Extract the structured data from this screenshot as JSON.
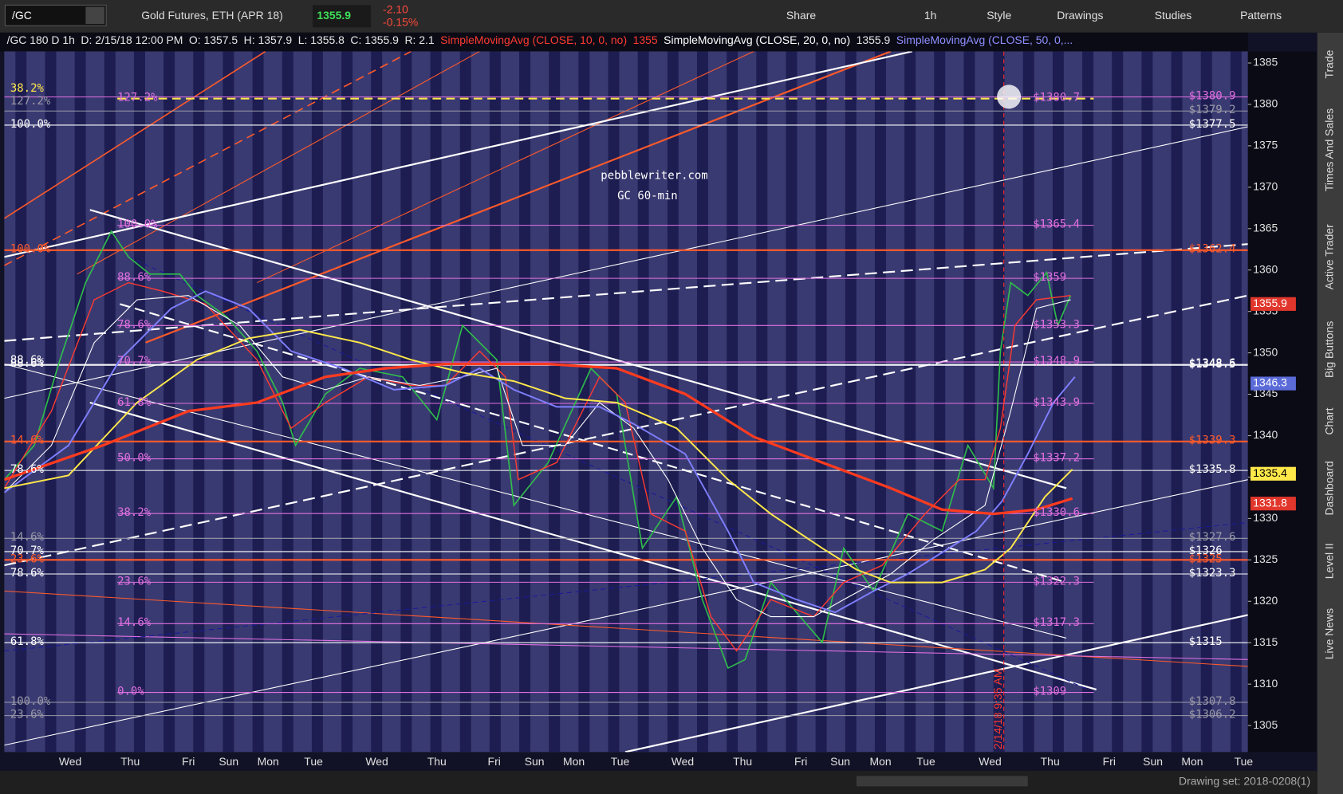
{
  "toolbar": {
    "symbol": "/GC",
    "description": "Gold Futures, ETH (APR 18)",
    "last": "1355.9",
    "change": "-2.10",
    "change_pct": "-0.15%",
    "buttons": [
      "Share",
      "1h",
      "Style",
      "Drawings",
      "Studies",
      "Patterns"
    ]
  },
  "info_line": {
    "chart": "/GC 180 D 1h",
    "date": "D: 2/15/18 12:00 PM",
    "open": "O: 1357.5",
    "high": "H: 1357.9",
    "low": "L: 1355.8",
    "close": "C: 1355.9",
    "range": "R: 2.1",
    "studies": [
      {
        "name": "SimpleMovingAvg (CLOSE, 10, 0, no)",
        "value": "1355",
        "color": "#ff3b30"
      },
      {
        "name": "SimpleMovingAvg (CLOSE, 20, 0, no)",
        "value": "1355.9",
        "color": "#ffffff"
      },
      {
        "name": "SimpleMovingAvg (CLOSE, 50, 0,...",
        "color": "#8f8fff"
      }
    ]
  },
  "watermark": [
    "pebblewriter.com",
    "GC 60-min"
  ],
  "annotation": "2/14/18 9:35 AM",
  "price_axis": {
    "ylim": [
      1301.8,
      1386.4
    ],
    "ticks": [
      1385,
      1380,
      1375,
      1370,
      1365,
      1360,
      1355,
      1350,
      1345,
      1340,
      1335,
      1330,
      1325,
      1320,
      1315,
      1310,
      1305
    ]
  },
  "days": [
    "Wed",
    "Thu",
    "Fri",
    "Sun",
    "Mon",
    "Tue",
    "Wed",
    "Thu",
    "Fri",
    "Sun",
    "Mon",
    "Tue",
    "Wed",
    "Thu",
    "Fri",
    "Sun",
    "Mon",
    "Tue",
    "Wed",
    "Thu",
    "Fri",
    "Sun",
    "Mon",
    "Tue"
  ],
  "fib_levels": [
    {
      "pct": "127.2%",
      "label": "$1380.7",
      "value": 1380.7
    },
    {
      "pct": "100.0%",
      "label": "$1365.4",
      "value": 1365.4
    },
    {
      "pct": "88.6%",
      "label": "$1359",
      "value": 1359
    },
    {
      "pct": "78.6%",
      "label": "$1353.3",
      "value": 1353.3
    },
    {
      "pct": "70.7%",
      "label": "$1348.9",
      "value": 1348.9
    },
    {
      "pct": "61.8%",
      "label": "$1343.9",
      "value": 1343.9
    },
    {
      "pct": "50.0%",
      "label": "$1337.2",
      "value": 1337.2
    },
    {
      "pct": "38.2%",
      "label": "$1330.6",
      "value": 1330.6
    },
    {
      "pct": "23.6%",
      "label": "$1322.3",
      "value": 1322.3
    },
    {
      "pct": "14.6%",
      "label": "$1317.3",
      "value": 1317.3
    },
    {
      "pct": "0.0%",
      "label": "$1309",
      "value": 1309
    }
  ],
  "levels": [
    {
      "label": "$1380.9",
      "value": 1380.9,
      "color": "#e070e0"
    },
    {
      "label": "$1379.2",
      "value": 1379.2,
      "color": "#9a9aa8"
    },
    {
      "label": "$1377.5",
      "value": 1377.5,
      "color": "#ffffff"
    },
    {
      "label": "$1362.4",
      "value": 1362.4,
      "color": "#ff5a2a"
    },
    {
      "label": "$1348.6",
      "value": 1348.6,
      "color": "#ffffff"
    },
    {
      "label": "$1348.5",
      "value": 1348.5,
      "color": "#ffffff"
    },
    {
      "label": "$1339.3",
      "value": 1339.3,
      "color": "#ff5a2a"
    },
    {
      "label": "$1335.8",
      "value": 1335.8,
      "color": "#ffffff"
    },
    {
      "label": "$1327.6",
      "value": 1327.6,
      "color": "#9a9aa8"
    },
    {
      "label": "$1326",
      "value": 1326,
      "color": "#ffffff"
    },
    {
      "label": "$1325",
      "value": 1325,
      "color": "#ff5a2a"
    },
    {
      "label": "$1323.3",
      "value": 1323.3,
      "color": "#ffffff"
    },
    {
      "label": "$1315",
      "value": 1315,
      "color": "#ffffff"
    },
    {
      "label": "$1307.8",
      "value": 1307.8,
      "color": "#9a9aa8"
    },
    {
      "label": "$1306.2",
      "value": 1306.2,
      "color": "#9a9aa8"
    }
  ],
  "left_labels": [
    {
      "pct": "38.2%",
      "value": 1381.8,
      "color": "#ffe84a"
    },
    {
      "pct": "127.2%",
      "value": 1380.3,
      "color": "#9a9aa8"
    },
    {
      "pct": "100.0%",
      "value": 1377.5,
      "color": "#ffffff"
    },
    {
      "pct": "100.0%",
      "value": 1362.4,
      "color": "#ff5a2a"
    },
    {
      "pct": "88.6%",
      "value": 1349,
      "color": "#ffffff"
    },
    {
      "pct": "88.6%",
      "value": 1348.6,
      "color": "#ffffff"
    },
    {
      "pct": "14.6%",
      "value": 1339.3,
      "color": "#ff5a2a"
    },
    {
      "pct": "78.6%",
      "value": 1335.8,
      "color": "#ffffff"
    },
    {
      "pct": "14.6%",
      "value": 1327.6,
      "color": "#9a9aa8"
    },
    {
      "pct": "70.7%",
      "value": 1326,
      "color": "#ffffff"
    },
    {
      "pct": "23.6%",
      "value": 1325,
      "color": "#ff5a2a"
    },
    {
      "pct": "78.6%",
      "value": 1323.3,
      "color": "#ffffff"
    },
    {
      "pct": "61.8%",
      "value": 1315,
      "color": "#ffffff"
    },
    {
      "pct": "100.0%",
      "value": 1307.8,
      "color": "#9a9aa8"
    },
    {
      "pct": "23.6%",
      "value": 1306.2,
      "color": "#9a9aa8"
    }
  ],
  "price_boxes": [
    {
      "label": "1355.9",
      "value": 1355.9,
      "color": "#e0362b"
    },
    {
      "label": "1346.3",
      "value": 1346.3,
      "color": "#5b6bd8"
    },
    {
      "label": "1335.4",
      "value": 1335.4,
      "color": "#ffe84a"
    },
    {
      "label": "1331.8",
      "value": 1331.8,
      "color": "#e0362b"
    }
  ],
  "side_tabs": [
    "Trade",
    "Times And Sales",
    "Active Trader",
    "Big Buttons",
    "Chart",
    "Dashboard",
    "Level II",
    "Live News"
  ],
  "footer": "Drawing set: 2018-0208(1)"
}
